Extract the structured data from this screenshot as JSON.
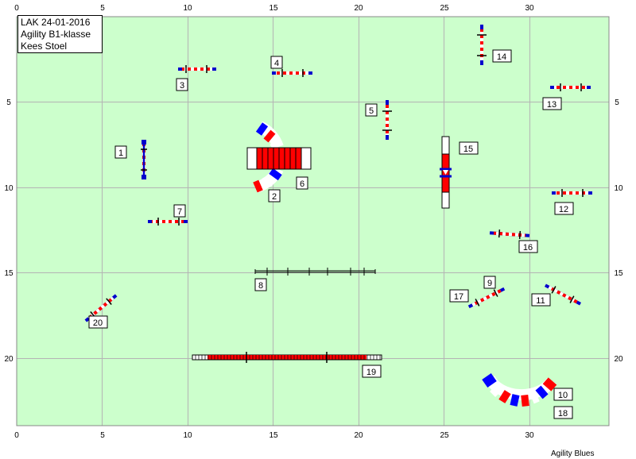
{
  "info": {
    "line1": "LAK 24-01-2016",
    "line2": "Agility B1-klasse",
    "line3": "Kees Stoel"
  },
  "footer": "Agility Blues",
  "axis": {
    "x_ticks": [
      "0",
      "5",
      "10",
      "15",
      "20",
      "25",
      "30"
    ],
    "y_ticks": [
      "5",
      "10",
      "15",
      "20"
    ]
  },
  "colors": {
    "field": "#ccffcc",
    "grid": "#b4b4b4",
    "pole_blue": "#0000cc",
    "stripe_red": "#ff0000"
  },
  "obstacles": {
    "n1": "1",
    "n2": "2",
    "n3": "3",
    "n4": "4",
    "n5": "5",
    "n6": "6",
    "n7": "7",
    "n8": "8",
    "n9": "9",
    "n10": "10",
    "n11": "11",
    "n12": "12",
    "n13": "13",
    "n14": "14",
    "n15": "15",
    "n16": "16",
    "n17": "17",
    "n18": "18",
    "n19": "19",
    "n20": "20"
  }
}
